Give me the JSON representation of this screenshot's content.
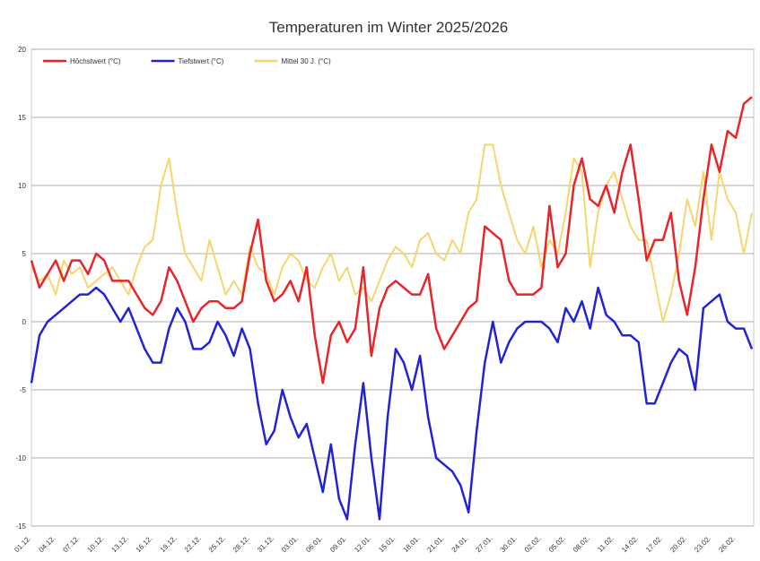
{
  "chart_data": {
    "type": "line",
    "title": "Temperaturen im Winter 2025/2026",
    "ylim": [
      -15,
      20
    ],
    "yticks": [
      -15,
      -10,
      -5,
      0,
      5,
      10,
      15,
      20
    ],
    "grid": true,
    "legend": "top-left",
    "categories": [
      "01.12.",
      null,
      null,
      "04.12.",
      null,
      null,
      "07.12.",
      null,
      null,
      "10.12.",
      null,
      null,
      "13.12.",
      null,
      null,
      "16.12.",
      null,
      null,
      "19.12.",
      null,
      null,
      "22.12.",
      null,
      null,
      "25.12.",
      null,
      null,
      "28.12.",
      null,
      null,
      "31.12.",
      null,
      null,
      "03.01.",
      null,
      null,
      "06.01.",
      null,
      null,
      "09.01.",
      null,
      null,
      "12.01.",
      null,
      null,
      "15.01.",
      null,
      null,
      "18.01.",
      null,
      null,
      "21.01.",
      null,
      null,
      "24.01.",
      null,
      null,
      "27.01.",
      null,
      null,
      "30.01.",
      null,
      null,
      "02.02.",
      null,
      null,
      "05.02.",
      null,
      null,
      "08.02.",
      null,
      null,
      "11.02.",
      null,
      null,
      "14.02.",
      null,
      null,
      "17.02.",
      null,
      null,
      "20.02.",
      null,
      null,
      "23.02.",
      null,
      null,
      "26.02.",
      null,
      null
    ],
    "series": [
      {
        "name": "Höchstwert (°C)",
        "color": "#e8262a",
        "values": [
          4.5,
          2.5,
          3.5,
          4.5,
          3,
          4.5,
          4.5,
          3.5,
          5,
          4.5,
          3,
          3,
          3,
          2,
          1,
          0.5,
          1.5,
          4,
          3,
          1.5,
          0,
          1,
          1.5,
          1.5,
          1,
          1,
          1.5,
          5,
          7.5,
          3,
          1.5,
          2,
          3,
          1.5,
          4,
          -1,
          -4.5,
          -1,
          0,
          -1.5,
          -0.5,
          4,
          -2.5,
          1,
          2.5,
          3,
          2.5,
          2,
          2,
          3.5,
          -0.5,
          -2,
          -1,
          0,
          1,
          1.5,
          7,
          6.5,
          6,
          3,
          2,
          2,
          2,
          2.5,
          8.5,
          4,
          5,
          10,
          12,
          9,
          8.5,
          10,
          8,
          11,
          13,
          9,
          4.5,
          6,
          6,
          8,
          3,
          0.5,
          4,
          9,
          13,
          11,
          14,
          13.5,
          16,
          16.5
        ]
      },
      {
        "name": "Tiefstwert (°C)",
        "color": "#2323d6",
        "values": [
          -4.5,
          -1,
          0,
          0.5,
          1,
          1.5,
          2,
          2,
          2.5,
          2,
          1,
          0,
          1,
          -0.5,
          -2,
          -3,
          -3,
          -0.5,
          1,
          0,
          -2,
          -2,
          -1.5,
          0,
          -1,
          -2.5,
          -0.5,
          -2,
          -6,
          -9,
          -8,
          -5,
          -7,
          -8.5,
          -7.5,
          -10,
          -12.5,
          -9,
          -13,
          -14.5,
          -9,
          -4.5,
          -10,
          -14.5,
          -7,
          -2,
          -3,
          -5,
          -2.5,
          -7,
          -10,
          -10.5,
          -11,
          -12,
          -14,
          -8,
          -3,
          0,
          -3,
          -1.5,
          -0.5,
          0,
          0,
          0,
          -0.5,
          -1.5,
          1,
          0,
          1.5,
          -0.5,
          2.5,
          0.5,
          0,
          -1,
          -1,
          -1.5,
          -6,
          -6,
          -4.5,
          -3,
          -2,
          -2.5,
          -5,
          1,
          1.5,
          2,
          0,
          -0.5,
          -0.5,
          -2
        ]
      },
      {
        "name": "Mittel 30 J. (°C)",
        "color": "#f5d66e",
        "values": [
          4,
          3,
          3.5,
          2,
          4.5,
          3.5,
          4,
          2.5,
          3,
          3.5,
          4,
          3,
          2,
          4,
          5.5,
          6,
          10,
          12,
          8,
          5,
          4,
          3,
          6,
          4,
          2,
          3,
          2,
          5.5,
          4,
          3.5,
          2,
          4,
          5,
          4.5,
          3,
          2.5,
          4,
          5,
          3,
          4,
          2,
          2.5,
          1.5,
          3,
          4.5,
          5.5,
          5,
          4,
          6,
          6.5,
          5,
          4.5,
          6,
          5,
          8,
          9,
          13,
          13,
          10,
          8,
          6,
          5,
          7,
          4,
          6,
          5,
          8,
          12,
          11,
          4,
          8,
          10,
          11,
          9,
          7,
          6,
          6,
          3,
          0,
          2,
          5,
          9,
          7,
          11,
          6,
          11,
          9,
          8,
          5,
          8
        ]
      }
    ]
  }
}
